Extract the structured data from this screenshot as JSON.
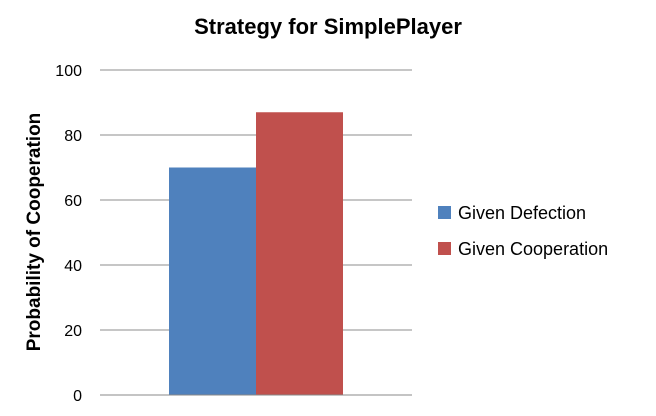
{
  "chart_data": {
    "type": "bar",
    "title": "Strategy for SimplePlayer",
    "xlabel": "",
    "ylabel": "Probability of Cooperation",
    "categories": [
      ""
    ],
    "series": [
      {
        "name": "Given Defection",
        "values": [
          70
        ],
        "color": "#4f81bd"
      },
      {
        "name": "Given Cooperation",
        "values": [
          87
        ],
        "color": "#c0504d"
      }
    ],
    "ylim": [
      0,
      100
    ],
    "yticks": [
      0,
      20,
      40,
      60,
      80,
      100
    ],
    "grid": true,
    "legend_position": "right"
  }
}
